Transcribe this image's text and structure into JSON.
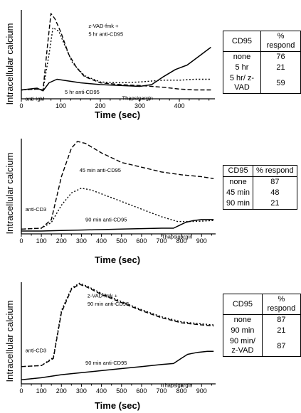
{
  "chart_data": [
    {
      "type": "line",
      "ylabel": "Intracellular calcium",
      "xlabel": "Time (sec)",
      "xlim": [
        0,
        490
      ],
      "ylim": [
        0,
        10
      ],
      "xticks": [
        0,
        100,
        200,
        300,
        400
      ],
      "series": [
        {
          "name": "5 hr anti-CD95",
          "style": "solid",
          "x": [
            0,
            40,
            55,
            70,
            90,
            120,
            150,
            200,
            250,
            300,
            330,
            360,
            390,
            420,
            450,
            480
          ],
          "y": [
            1.0,
            1.2,
            0.9,
            1.8,
            2.2,
            2.0,
            1.8,
            1.6,
            1.5,
            1.4,
            1.6,
            2.5,
            3.3,
            3.8,
            4.8,
            5.8
          ]
        },
        {
          "name": "z-VAD-fmk + 5 hr anti-CD95",
          "style": "dashed",
          "x": [
            0,
            40,
            55,
            65,
            75,
            85,
            100,
            120,
            140,
            160,
            200,
            250,
            300,
            330,
            360,
            400,
            440,
            480
          ],
          "y": [
            1.0,
            1.1,
            1.0,
            5.5,
            9.6,
            9.0,
            7.5,
            5.0,
            3.5,
            2.5,
            1.8,
            1.6,
            1.5,
            1.4,
            1.3,
            1.1,
            1.0,
            1.0
          ]
        },
        {
          "name": "5 hr anti-CD95 dotted",
          "style": "dotted",
          "x": [
            0,
            40,
            55,
            70,
            80,
            95,
            110,
            130,
            160,
            200,
            250,
            300,
            330,
            360,
            400,
            440,
            480
          ],
          "y": [
            1.0,
            1.1,
            1.0,
            5.0,
            8.0,
            7.6,
            6.0,
            4.0,
            2.6,
            1.9,
            1.8,
            1.9,
            2.0,
            2.1,
            2.1,
            2.2,
            2.2
          ]
        }
      ],
      "annotations": [
        {
          "text": "z-VAD-fmk +",
          "x": 170,
          "y": 8.0
        },
        {
          "text": "5 hr anti-CD95",
          "x": 170,
          "y": 7.1
        },
        {
          "text": "5 hr anti-CD95",
          "x": 110,
          "y": 0.55
        },
        {
          "text": "anti-IgM",
          "x": 10,
          "y": -0.2
        },
        {
          "text": "Thapsigargin",
          "x": 255,
          "y": -0.1
        }
      ],
      "table": {
        "headers": [
          "CD95",
          "% respond"
        ],
        "rows": [
          [
            "none",
            "76"
          ],
          [
            "5 hr",
            "21"
          ],
          [
            "5 hr/ z-VAD",
            "59"
          ]
        ]
      }
    },
    {
      "type": "line",
      "ylabel": "Intracellular calcium",
      "xlabel": "Time (sec)",
      "xlim": [
        0,
        970
      ],
      "ylim": [
        0,
        10
      ],
      "xticks": [
        0,
        100,
        200,
        300,
        400,
        500,
        600,
        700,
        800,
        900
      ],
      "series": [
        {
          "name": "45 min anti-CD95",
          "style": "dashed",
          "x": [
            0,
            100,
            150,
            200,
            250,
            280,
            320,
            400,
            500,
            600,
            700,
            800,
            900,
            960
          ],
          "y": [
            0.5,
            0.6,
            1.5,
            6.0,
            9.0,
            9.7,
            9.5,
            8.5,
            7.5,
            7.0,
            6.5,
            6.2,
            6.0,
            5.8
          ]
        },
        {
          "name": "45 min anti-CD95 dotted",
          "style": "dotted",
          "x": [
            0,
            100,
            150,
            200,
            250,
            300,
            350,
            400,
            500,
            600,
            700,
            780,
            860,
            960
          ],
          "y": [
            0.5,
            0.6,
            1.2,
            3.0,
            4.3,
            4.8,
            4.6,
            4.2,
            3.4,
            2.6,
            1.8,
            1.3,
            1.3,
            1.4
          ]
        },
        {
          "name": "90 min anti-CD95",
          "style": "solid",
          "x": [
            0,
            100,
            200,
            300,
            400,
            500,
            600,
            700,
            760,
            790,
            820,
            860,
            900,
            960
          ],
          "y": [
            0.3,
            0.3,
            0.35,
            0.4,
            0.45,
            0.5,
            0.55,
            0.6,
            0.6,
            0.9,
            1.2,
            1.4,
            1.5,
            1.5
          ]
        }
      ],
      "annotations": [
        {
          "text": "45 min anti-CD95",
          "x": 290,
          "y": 6.5
        },
        {
          "text": "anti-CD3",
          "x": 20,
          "y": 2.4
        },
        {
          "text": "90 min anti-CD95",
          "x": 320,
          "y": 1.3
        },
        {
          "text": "Thapsigargin",
          "x": 700,
          "y": -0.5
        }
      ],
      "table": {
        "headers": [
          "CD95",
          "% respond"
        ],
        "rows": [
          [
            "none",
            "87"
          ],
          [
            "45 min",
            "48"
          ],
          [
            "90 min",
            "21"
          ]
        ]
      }
    },
    {
      "type": "line",
      "ylabel": "Intracellular calcium",
      "xlabel": "Time (sec)",
      "xlim": [
        0,
        970
      ],
      "ylim": [
        0,
        10
      ],
      "xticks": [
        0,
        100,
        200,
        300,
        400,
        500,
        600,
        700,
        800,
        900
      ],
      "series": [
        {
          "name": "z-VAD-fmk + 90 min anti-CD95 dashed",
          "style": "dashed",
          "x": [
            0,
            100,
            160,
            200,
            250,
            290,
            330,
            400,
            500,
            600,
            700,
            800,
            900,
            960
          ],
          "y": [
            1.7,
            1.8,
            2.5,
            7.0,
            9.3,
            9.8,
            9.5,
            8.8,
            8.0,
            7.2,
            6.5,
            6.0,
            5.8,
            5.7
          ]
        },
        {
          "name": "z-VAD-fmk + 90 min anti-CD95 dotted",
          "style": "dotted",
          "x": [
            0,
            100,
            160,
            200,
            250,
            290,
            330,
            400,
            500,
            600,
            700,
            800,
            900,
            960
          ],
          "y": [
            1.7,
            1.8,
            2.6,
            7.2,
            9.4,
            9.9,
            9.6,
            8.9,
            8.1,
            7.3,
            6.6,
            6.1,
            5.9,
            5.8
          ]
        },
        {
          "name": "90 min anti-CD95",
          "style": "solid",
          "x": [
            0,
            100,
            200,
            300,
            400,
            500,
            600,
            700,
            760,
            790,
            830,
            880,
            930,
            960
          ],
          "y": [
            0.4,
            0.6,
            0.9,
            1.1,
            1.3,
            1.5,
            1.7,
            1.9,
            2.0,
            2.4,
            2.9,
            3.1,
            3.2,
            3.2
          ]
        }
      ],
      "annotations": [
        {
          "text": "z-VAD-fmk +",
          "x": 330,
          "y": 8.5
        },
        {
          "text": "90 min anti-CD95",
          "x": 330,
          "y": 7.7
        },
        {
          "text": "anti-CD3",
          "x": 20,
          "y": 3.1
        },
        {
          "text": "90 min anti-CD95",
          "x": 320,
          "y": 1.9
        },
        {
          "text": "Thapsigargin",
          "x": 700,
          "y": -0.3
        }
      ],
      "table": {
        "headers": [
          "CD95",
          "% respond"
        ],
        "rows": [
          [
            "none",
            "87"
          ],
          [
            "90 min",
            "21"
          ],
          [
            "90 min/ z-VAD",
            "87"
          ]
        ]
      }
    }
  ]
}
